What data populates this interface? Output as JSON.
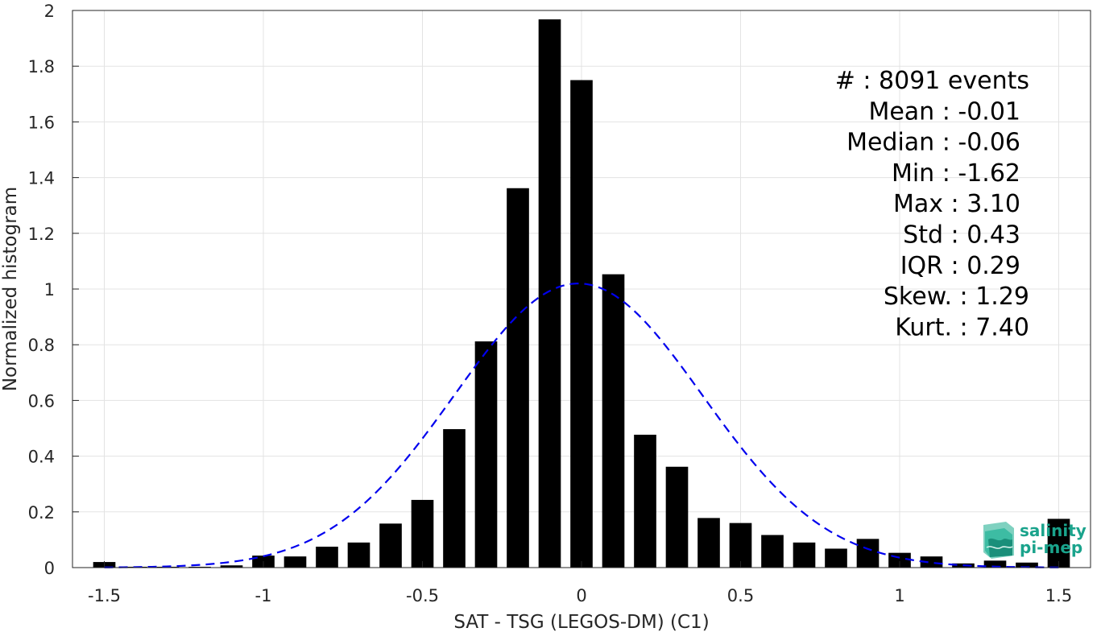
{
  "chart_data": {
    "type": "bar",
    "xlabel": "SAT - TSG (LEGOS-DM) (C1)",
    "ylabel": "Normalized histogram",
    "xlim": [
      -1.6,
      1.6
    ],
    "ylim": [
      0,
      2
    ],
    "xticks": [
      -1.5,
      -1,
      -0.5,
      0,
      0.5,
      1,
      1.5
    ],
    "xtick_labels": [
      "-1.5",
      "-1",
      "-0.5",
      "0",
      "0.5",
      "1",
      "1.5"
    ],
    "yticks": [
      0,
      0.2,
      0.4,
      0.6,
      0.8,
      1,
      1.2,
      1.4,
      1.6,
      1.8,
      2
    ],
    "ytick_labels": [
      "0",
      "0.2",
      "0.4",
      "0.6",
      "0.8",
      "1",
      "1.2",
      "1.4",
      "1.6",
      "1.8",
      "2"
    ],
    "grid": true,
    "bar_width": 0.07,
    "bar_color": "#000000",
    "x": [
      -1.5,
      -1.4,
      -1.3,
      -1.2,
      -1.1,
      -1.0,
      -0.9,
      -0.8,
      -0.7,
      -0.6,
      -0.5,
      -0.4,
      -0.3,
      -0.2,
      -0.1,
      0.0,
      0.1,
      0.2,
      0.3,
      0.4,
      0.5,
      0.6,
      0.7,
      0.8,
      0.9,
      1.0,
      1.1,
      1.2,
      1.3,
      1.4,
      1.5
    ],
    "values": [
      0.02,
      0.003,
      0.003,
      0.003,
      0.008,
      0.043,
      0.04,
      0.075,
      0.09,
      0.158,
      0.243,
      0.497,
      0.812,
      1.362,
      1.968,
      1.75,
      1.053,
      0.477,
      0.362,
      0.178,
      0.16,
      0.117,
      0.09,
      0.068,
      0.103,
      0.053,
      0.04,
      0.015,
      0.025,
      0.018,
      0.175
    ],
    "fit_curve": {
      "type": "gaussian",
      "color": "#0000ee",
      "style": "dashed",
      "mean": -0.01,
      "std": 0.39,
      "peak": 1.02,
      "x_range": [
        -1.5,
        1.5
      ]
    },
    "stats": [
      {
        "label": "#  : 8091 events"
      },
      {
        "label": "Mean : -0.01"
      },
      {
        "label": "Median : -0.06"
      },
      {
        "label": "Min : -1.62"
      },
      {
        "label": "Max : 3.10"
      },
      {
        "label": "Std : 0.43"
      },
      {
        "label": "IQR : 0.29"
      },
      {
        "label": "Skew. : 1.29"
      },
      {
        "label": "Kurt. : 7.40"
      }
    ]
  },
  "logo": {
    "line1": "salinity",
    "line2": "pi-mep",
    "color": "#1aa38c"
  }
}
